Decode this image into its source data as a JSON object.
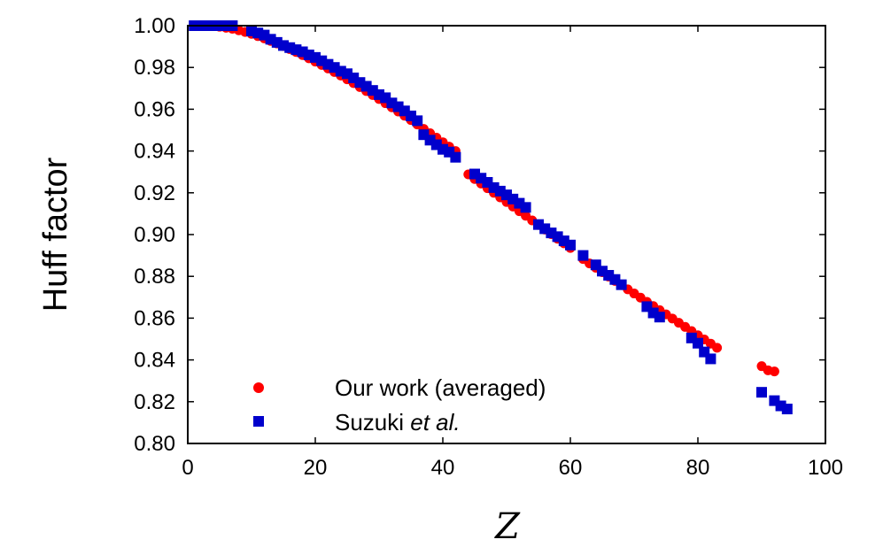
{
  "chart_data": {
    "type": "scatter",
    "xlabel": "Z",
    "ylabel": "Huff factor",
    "xlim": [
      0,
      100
    ],
    "ylim": [
      0.8,
      1.0
    ],
    "xticks": [
      "0",
      "20",
      "40",
      "60",
      "80",
      "100"
    ],
    "yticks": [
      "0.80",
      "0.82",
      "0.84",
      "0.86",
      "0.88",
      "0.90",
      "0.92",
      "0.94",
      "0.96",
      "0.98",
      "1.00"
    ],
    "grid": false,
    "legend_position": "lower-left",
    "series": [
      {
        "name": "Our work (averaged)",
        "marker": "circle",
        "color": "#ff0000",
        "points": [
          [
            1,
            1.0
          ],
          [
            2,
            1.0
          ],
          [
            3,
            1.0
          ],
          [
            4,
            1.0
          ],
          [
            5,
            0.9995
          ],
          [
            6,
            0.999
          ],
          [
            7,
            0.9985
          ],
          [
            8,
            0.9978
          ],
          [
            9,
            0.997
          ],
          [
            10,
            0.9961
          ],
          [
            11,
            0.995
          ],
          [
            12,
            0.9939
          ],
          [
            13,
            0.9927
          ],
          [
            14,
            0.9915
          ],
          [
            15,
            0.9902
          ],
          [
            16,
            0.9888
          ],
          [
            17,
            0.9874
          ],
          [
            18,
            0.9859
          ],
          [
            19,
            0.9844
          ],
          [
            20,
            0.9828
          ],
          [
            21,
            0.9812
          ],
          [
            22,
            0.9795
          ],
          [
            23,
            0.9778
          ],
          [
            24,
            0.9761
          ],
          [
            25,
            0.9743
          ],
          [
            26,
            0.9725
          ],
          [
            27,
            0.9706
          ],
          [
            28,
            0.9687
          ],
          [
            29,
            0.9668
          ],
          [
            30,
            0.9649
          ],
          [
            31,
            0.9629
          ],
          [
            32,
            0.9609
          ],
          [
            33,
            0.9589
          ],
          [
            34,
            0.9569
          ],
          [
            35,
            0.9548
          ],
          [
            36,
            0.9527
          ],
          [
            37,
            0.9506
          ],
          [
            38,
            0.9485
          ],
          [
            39,
            0.9464
          ],
          [
            40,
            0.9442
          ],
          [
            41,
            0.9421
          ],
          [
            42,
            0.94
          ],
          [
            44,
            0.9288
          ],
          [
            45,
            0.9266
          ],
          [
            46,
            0.9244
          ],
          [
            47,
            0.9222
          ],
          [
            48,
            0.92
          ],
          [
            49,
            0.9178
          ],
          [
            50,
            0.9156
          ],
          [
            51,
            0.9134
          ],
          [
            52,
            0.9112
          ],
          [
            53,
            0.909
          ],
          [
            54,
            0.9068
          ],
          [
            55,
            0.9046
          ],
          [
            56,
            0.9024
          ],
          [
            57,
            0.9002
          ],
          [
            58,
            0.898
          ],
          [
            59,
            0.8958
          ],
          [
            60,
            0.8936
          ],
          [
            62,
            0.8883
          ],
          [
            63,
            0.8862
          ],
          [
            64,
            0.8841
          ],
          [
            65,
            0.882
          ],
          [
            66,
            0.8799
          ],
          [
            67,
            0.8778
          ],
          [
            68,
            0.8758
          ],
          [
            69,
            0.8738
          ],
          [
            70,
            0.8718
          ],
          [
            71,
            0.8698
          ],
          [
            72,
            0.8678
          ],
          [
            73,
            0.8658
          ],
          [
            74,
            0.8638
          ],
          [
            75,
            0.8618
          ],
          [
            76,
            0.8598
          ],
          [
            77,
            0.8578
          ],
          [
            78,
            0.8558
          ],
          [
            79,
            0.8538
          ],
          [
            80,
            0.8518
          ],
          [
            81,
            0.8498
          ],
          [
            82,
            0.8478
          ],
          [
            83,
            0.8458
          ],
          [
            90,
            0.837
          ],
          [
            91,
            0.835
          ],
          [
            92,
            0.8345
          ]
        ]
      },
      {
        "name": "Suzuki et al.",
        "marker": "square",
        "color": "#0000cc",
        "points": [
          [
            1,
            1.0
          ],
          [
            2,
            1.0
          ],
          [
            3,
            1.0
          ],
          [
            4,
            1.0
          ],
          [
            5,
            1.0
          ],
          [
            6,
            1.0
          ],
          [
            7,
            1.0
          ],
          [
            10,
            0.9975
          ],
          [
            11,
            0.9965
          ],
          [
            12,
            0.9955
          ],
          [
            13,
            0.9935
          ],
          [
            14,
            0.992
          ],
          [
            15,
            0.9905
          ],
          [
            16,
            0.9895
          ],
          [
            17,
            0.9885
          ],
          [
            18,
            0.9875
          ],
          [
            19,
            0.986
          ],
          [
            20,
            0.9848
          ],
          [
            21,
            0.9832
          ],
          [
            22,
            0.9815
          ],
          [
            23,
            0.98
          ],
          [
            24,
            0.9782
          ],
          [
            25,
            0.977
          ],
          [
            26,
            0.975
          ],
          [
            27,
            0.9728
          ],
          [
            28,
            0.971
          ],
          [
            29,
            0.969
          ],
          [
            30,
            0.967
          ],
          [
            31,
            0.9655
          ],
          [
            32,
            0.963
          ],
          [
            33,
            0.9612
          ],
          [
            34,
            0.9592
          ],
          [
            35,
            0.9568
          ],
          [
            36,
            0.9545
          ],
          [
            37,
            0.9478
          ],
          [
            38,
            0.9452
          ],
          [
            39,
            0.943
          ],
          [
            40,
            0.9408
          ],
          [
            41,
            0.9395
          ],
          [
            42,
            0.937
          ],
          [
            45,
            0.929
          ],
          [
            46,
            0.927
          ],
          [
            47,
            0.925
          ],
          [
            48,
            0.9225
          ],
          [
            49,
            0.9208
          ],
          [
            50,
            0.919
          ],
          [
            51,
            0.917
          ],
          [
            52,
            0.915
          ],
          [
            53,
            0.913
          ],
          [
            55,
            0.9048
          ],
          [
            56,
            0.9028
          ],
          [
            57,
            0.9008
          ],
          [
            58,
            0.899
          ],
          [
            59,
            0.897
          ],
          [
            60,
            0.895
          ],
          [
            62,
            0.89
          ],
          [
            64,
            0.8855
          ],
          [
            65,
            0.8825
          ],
          [
            66,
            0.8805
          ],
          [
            67,
            0.8785
          ],
          [
            68,
            0.876
          ],
          [
            72,
            0.8655
          ],
          [
            73,
            0.8625
          ],
          [
            74,
            0.8605
          ],
          [
            79,
            0.8505
          ],
          [
            80,
            0.848
          ],
          [
            81,
            0.8438
          ],
          [
            82,
            0.8405
          ],
          [
            90,
            0.8245
          ],
          [
            92,
            0.8205
          ],
          [
            93,
            0.818
          ],
          [
            94,
            0.8165
          ]
        ]
      }
    ]
  }
}
